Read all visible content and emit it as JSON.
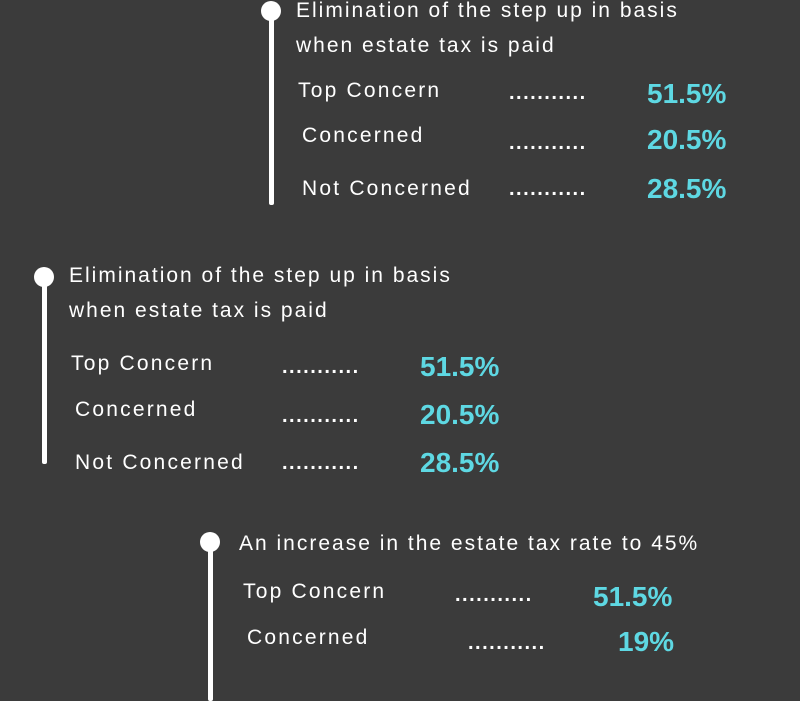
{
  "blocks": [
    {
      "title_line1": "Elimination of the step up in basis",
      "title_line2": "when estate tax is paid",
      "rows": [
        {
          "label": "Top Concern",
          "dots": "...........",
          "value": "51.5%"
        },
        {
          "label": "Concerned",
          "dots": "...........",
          "value": "20.5%"
        },
        {
          "label": "Not Concerned",
          "dots": "...........",
          "value": "28.5%"
        }
      ]
    },
    {
      "title_line1": "Elimination of the step up in basis",
      "title_line2": "when estate tax is paid",
      "rows": [
        {
          "label": "Top Concern",
          "dots": "...........",
          "value": "51.5%"
        },
        {
          "label": "Concerned",
          "dots": "...........",
          "value": "20.5%"
        },
        {
          "label": "Not Concerned",
          "dots": "...........",
          "value": "28.5%"
        }
      ]
    },
    {
      "title_line1": "An increase in the estate tax rate to 45%",
      "rows": [
        {
          "label": "Top Concern",
          "dots": "...........",
          "value": "51.5%"
        },
        {
          "label": "Concerned",
          "dots": "...........",
          "value": "19%"
        }
      ]
    }
  ],
  "colors": {
    "background": "#3b3b3b",
    "text": "#ffffff",
    "accent": "#5ed8e3"
  }
}
